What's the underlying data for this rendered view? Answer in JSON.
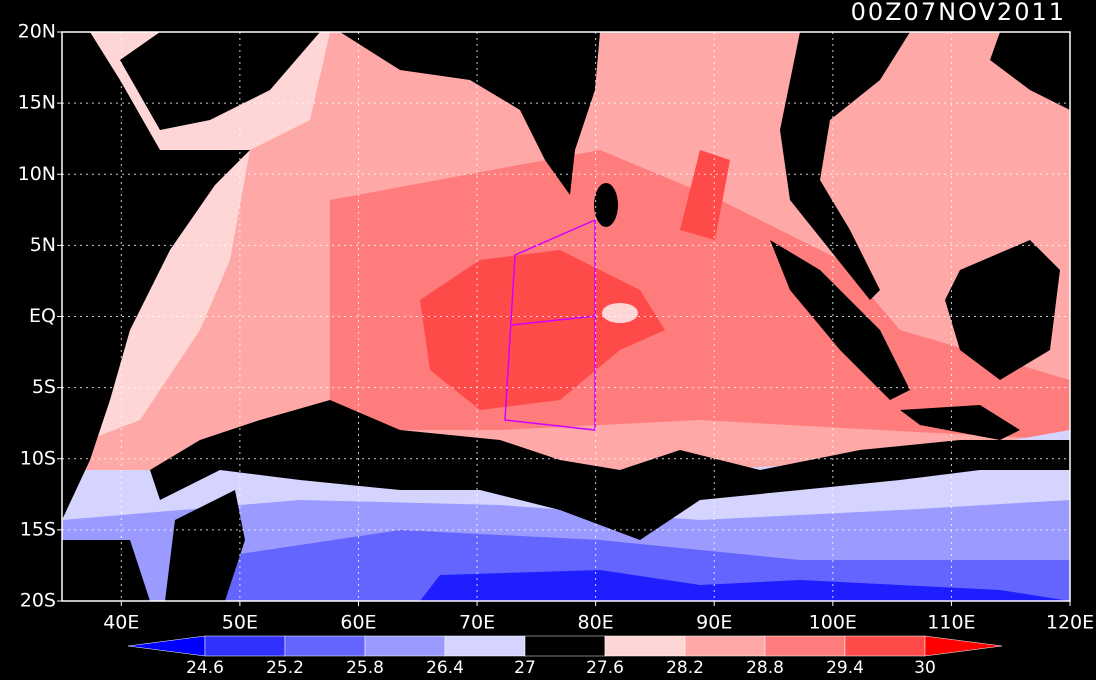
{
  "title": "00Z07NOV2011",
  "map": {
    "lon_labels": [
      "40E",
      "50E",
      "60E",
      "70E",
      "80E",
      "90E",
      "100E",
      "110E",
      "120E"
    ],
    "lat_labels": [
      "20N",
      "15N",
      "10N",
      "5N",
      "EQ",
      "5S",
      "10S",
      "15S",
      "20S"
    ]
  },
  "colorbar": {
    "levels": [
      24.6,
      25.2,
      25.8,
      26.4,
      27,
      27.6,
      28.2,
      28.8,
      29.4,
      30
    ],
    "colors": [
      "#0000ff",
      "#3232ff",
      "#6464ff",
      "#9a9aff",
      "#d4d4ff",
      "#000000",
      "#ffd6d6",
      "#ffa8a8",
      "#ff7c7c",
      "#ff4a4a",
      "#ff0000"
    ]
  }
}
